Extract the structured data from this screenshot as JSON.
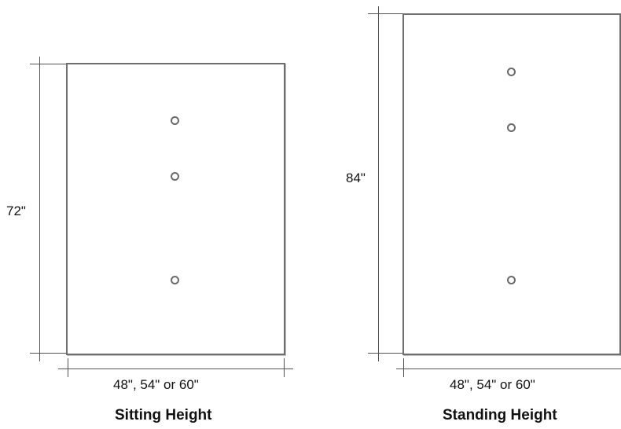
{
  "panels": [
    {
      "height_label": "72\"",
      "width_label": "48\", 54\" or 60\"",
      "caption": "Sitting Height"
    },
    {
      "height_label": "84\"",
      "width_label": "48\", 54\" or 60\"",
      "caption": "Standing Height"
    }
  ]
}
